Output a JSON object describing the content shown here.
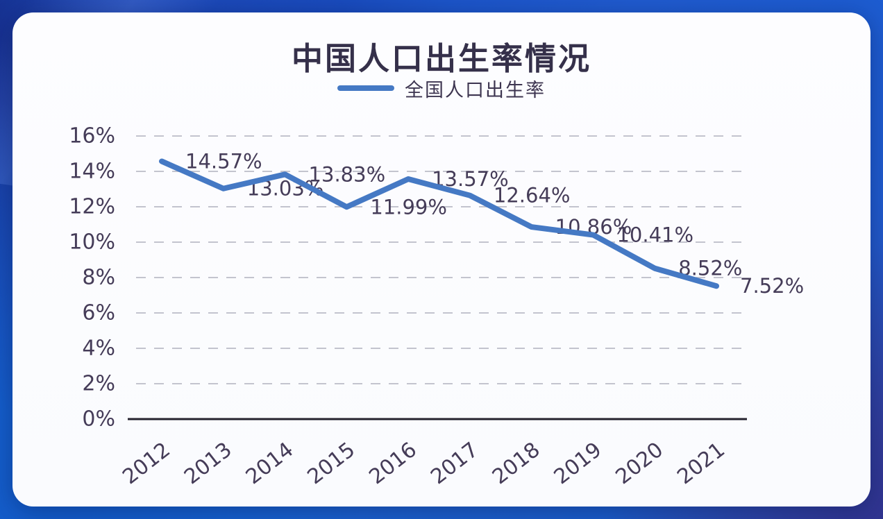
{
  "chart_data": {
    "type": "line",
    "title": "中国人口出生率情况",
    "legend_position": "top-center",
    "categories": [
      "2012",
      "2013",
      "2014",
      "2015",
      "2016",
      "2017",
      "2018",
      "2019",
      "2020",
      "2021"
    ],
    "series": [
      {
        "name": "全国人口出生率",
        "values": [
          14.57,
          13.03,
          13.83,
          11.99,
          13.57,
          12.64,
          10.86,
          10.41,
          8.52,
          7.52
        ],
        "labels": [
          "14.57%",
          "13.03%",
          "13.83%",
          "11.99%",
          "13.57%",
          "12.64%",
          "10.86%",
          "10.41%",
          "8.52%",
          "7.52%"
        ],
        "color": "#4579c4"
      }
    ],
    "y_axis": {
      "ticks": [
        "0%",
        "2%",
        "4%",
        "6%",
        "8%",
        "10%",
        "12%",
        "14%",
        "16%"
      ],
      "min": 0,
      "max": 16,
      "step": 2
    },
    "x_axis": {
      "rotation_deg": 38
    },
    "grid": {
      "horizontal_lines": true,
      "style": "dashed"
    },
    "xlabel": "",
    "ylabel": ""
  },
  "colors": {
    "line": "#4579c4",
    "grid_line": "#c3c4ce",
    "axis_line": "#24222d",
    "tick_text": "#453c58",
    "label_text": "#453c58",
    "title_text": "#35304a",
    "card_bg": "#fdfdff",
    "backdrop_blue": "#1c3fa9"
  }
}
